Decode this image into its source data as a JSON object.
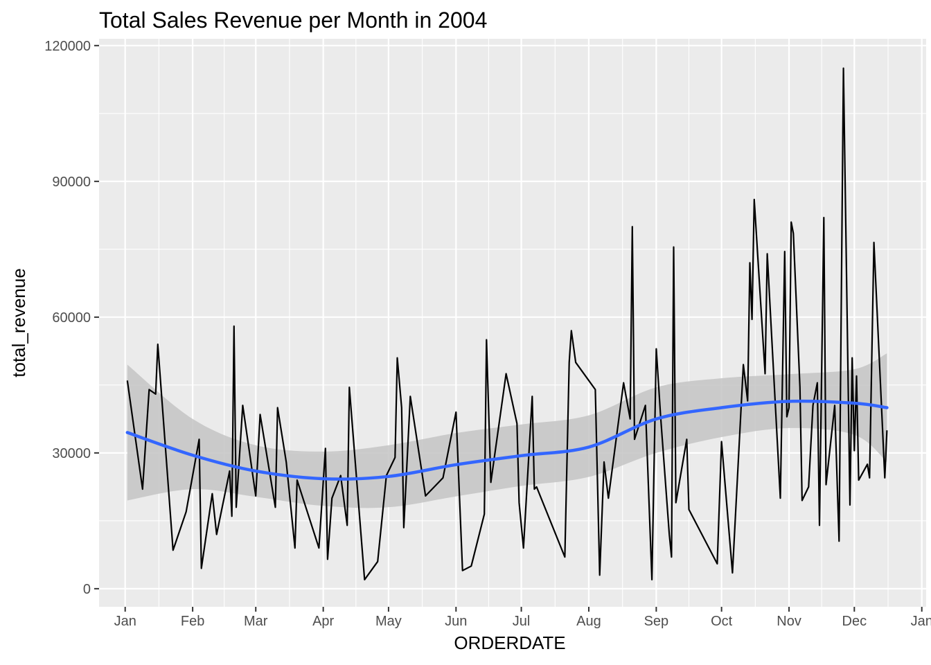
{
  "chart_data": {
    "type": "line",
    "title": "Total Sales Revenue per Month in 2004",
    "xlabel": "ORDERDATE",
    "ylabel": "total_revenue",
    "x_ticks": [
      "Jan",
      "Feb",
      "Mar",
      "Apr",
      "May",
      "Jun",
      "Jul",
      "Aug",
      "Sep",
      "Oct",
      "Nov",
      "Dec",
      "Jan"
    ],
    "y_ticks": [
      "0",
      "30000",
      "60000",
      "90000",
      "120000"
    ],
    "xlim": [
      "2003-12-20",
      "2005-01-03"
    ],
    "ylim": [
      -4000,
      121500
    ],
    "grid": true,
    "colors": {
      "panel": "#ebebeb",
      "grid": "#ffffff",
      "line": "#000000",
      "smooth": "#3366ff",
      "ribbon": "#c4c4c4"
    },
    "series": [
      {
        "x": [
          "2004-01-02",
          "2004-01-09",
          "2004-01-12",
          "2004-01-15",
          "2004-01-16",
          "2004-01-23",
          "2004-01-29",
          "2004-02-04",
          "2004-02-05",
          "2004-02-10",
          "2004-02-12",
          "2004-02-18",
          "2004-02-19",
          "2004-02-20",
          "2004-02-21",
          "2004-02-24",
          "2004-03-01",
          "2004-03-03",
          "2004-03-10",
          "2004-03-11",
          "2004-03-15",
          "2004-03-19",
          "2004-03-20",
          "2004-03-30",
          "2004-04-02",
          "2004-04-03",
          "2004-04-05",
          "2004-04-09",
          "2004-04-12",
          "2004-04-13",
          "2004-04-20",
          "2004-04-26",
          "2004-04-30",
          "2004-05-04",
          "2004-05-05",
          "2004-05-07",
          "2004-05-08",
          "2004-05-11",
          "2004-05-18",
          "2004-05-26",
          "2004-06-01",
          "2004-06-04",
          "2004-06-08",
          "2004-06-14",
          "2004-06-15",
          "2004-06-17",
          "2004-06-24",
          "2004-06-29",
          "2004-06-30",
          "2004-07-02",
          "2004-07-06",
          "2004-07-07",
          "2004-07-08",
          "2004-07-21",
          "2004-07-23",
          "2004-07-24",
          "2004-07-26",
          "2004-08-04",
          "2004-08-06",
          "2004-08-08",
          "2004-08-10",
          "2004-08-17",
          "2004-08-20",
          "2004-08-21",
          "2004-08-22",
          "2004-08-27",
          "2004-08-30",
          "2004-09-01",
          "2004-09-03",
          "2004-09-07",
          "2004-09-08",
          "2004-09-09",
          "2004-09-10",
          "2004-09-15",
          "2004-09-16",
          "2004-09-29",
          "2004-10-01",
          "2004-10-06",
          "2004-10-11",
          "2004-10-13",
          "2004-10-14",
          "2004-10-15",
          "2004-10-16",
          "2004-10-21",
          "2004-10-22",
          "2004-10-28",
          "2004-10-30",
          "2004-10-31",
          "2004-11-01",
          "2004-11-02",
          "2004-11-03",
          "2004-11-06",
          "2004-11-07",
          "2004-11-10",
          "2004-11-12",
          "2004-11-14",
          "2004-11-15",
          "2004-11-17",
          "2004-11-18",
          "2004-11-22",
          "2004-11-24",
          "2004-11-26",
          "2004-11-29",
          "2004-11-30",
          "2004-12-01",
          "2004-12-02",
          "2004-12-03",
          "2004-12-07",
          "2004-12-08",
          "2004-12-10",
          "2004-12-15",
          "2004-12-16"
        ],
        "y": [
          46000,
          22000,
          44000,
          43000,
          54000,
          8500,
          17000,
          33000,
          4500,
          21000,
          12000,
          26000,
          16000,
          58000,
          18000,
          40500,
          20500,
          38500,
          18000,
          40000,
          28000,
          9000,
          24000,
          9000,
          31000,
          6500,
          20000,
          25000,
          14000,
          44500,
          2000,
          6000,
          25000,
          29000,
          51000,
          40000,
          13500,
          42500,
          20500,
          24500,
          39000,
          4000,
          5000,
          16500,
          55000,
          23500,
          47500,
          36500,
          19000,
          9000,
          42500,
          22000,
          22500,
          7000,
          50000,
          57000,
          50000,
          44000,
          3000,
          28000,
          20000,
          45500,
          37500,
          80000,
          33000,
          40500,
          2000,
          53000,
          38000,
          12000,
          7000,
          75500,
          19000,
          33000,
          17500,
          5500,
          32500,
          3500,
          49500,
          41500,
          72000,
          59500,
          86000,
          47500,
          74000,
          20000,
          74500,
          38000,
          40000,
          81000,
          78500,
          44500,
          19500,
          22500,
          40500,
          45500,
          14000,
          82000,
          23000,
          40500,
          10500,
          115000,
          18500,
          51000,
          30500,
          47000,
          24000,
          27500,
          24500,
          76500,
          24500,
          35000
        ]
      },
      {
        "name": "smooth",
        "x": [
          "2004-01-02",
          "2004-02-01",
          "2004-03-01",
          "2004-04-01",
          "2004-05-01",
          "2004-06-01",
          "2004-07-01",
          "2004-08-01",
          "2004-09-01",
          "2004-10-01",
          "2004-11-01",
          "2004-12-01",
          "2004-12-16"
        ],
        "y": [
          34500,
          29500,
          26000,
          24300,
          24800,
          27400,
          29400,
          31300,
          37500,
          40000,
          41400,
          41000,
          40000
        ],
        "lower": [
          19500,
          22000,
          20300,
          18300,
          18000,
          20400,
          22700,
          24700,
          30000,
          33500,
          35500,
          34000,
          28000
        ],
        "upper": [
          49500,
          37500,
          31700,
          30300,
          31700,
          34400,
          36300,
          38300,
          44500,
          46500,
          47400,
          48500,
          52000
        ]
      }
    ]
  }
}
